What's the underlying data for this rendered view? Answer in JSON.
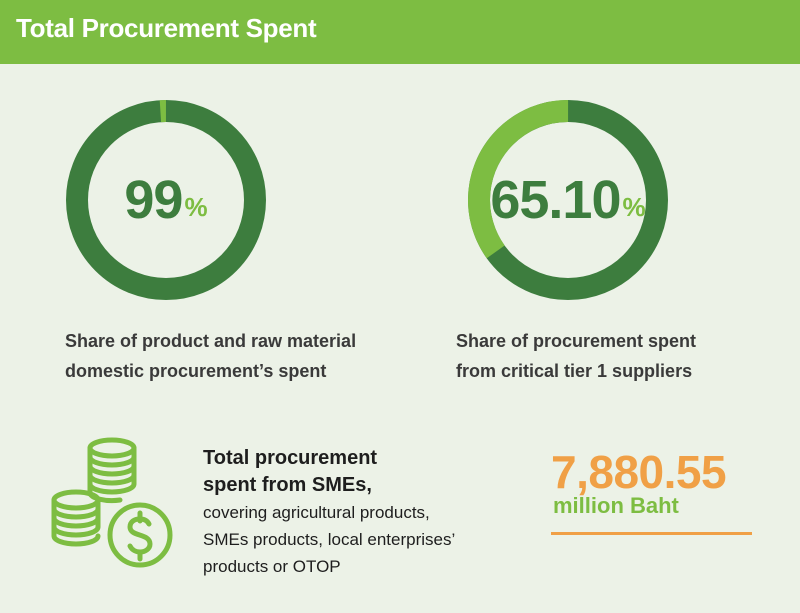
{
  "header": {
    "title": "Total Procurement Spent"
  },
  "metrics": [
    {
      "value": "99",
      "unit": "%",
      "percent": 99,
      "caption": [
        "Share of product and raw material",
        "domestic procurement’s spent"
      ]
    },
    {
      "value": "65.10",
      "unit": "%",
      "percent": 65.1,
      "caption": [
        "Share of procurement spent",
        "from critical tier 1 suppliers"
      ]
    }
  ],
  "sme": {
    "title_line1": "Total procurement",
    "title_line2": "spent from SMEs,",
    "desc_line1": "covering agricultural products,",
    "desc_line2": "SMEs products, local enterprises’",
    "desc_line3": "products or OTOP",
    "amount": "7,880.55",
    "amount_unit": "million Baht",
    "icon": "coins-dollar-icon"
  },
  "colors": {
    "header_green": "#7dbd42",
    "dark_green": "#3d7d3e",
    "light_green": "#7dbd42",
    "orange": "#f0a046",
    "background": "#ecf2e7"
  }
}
